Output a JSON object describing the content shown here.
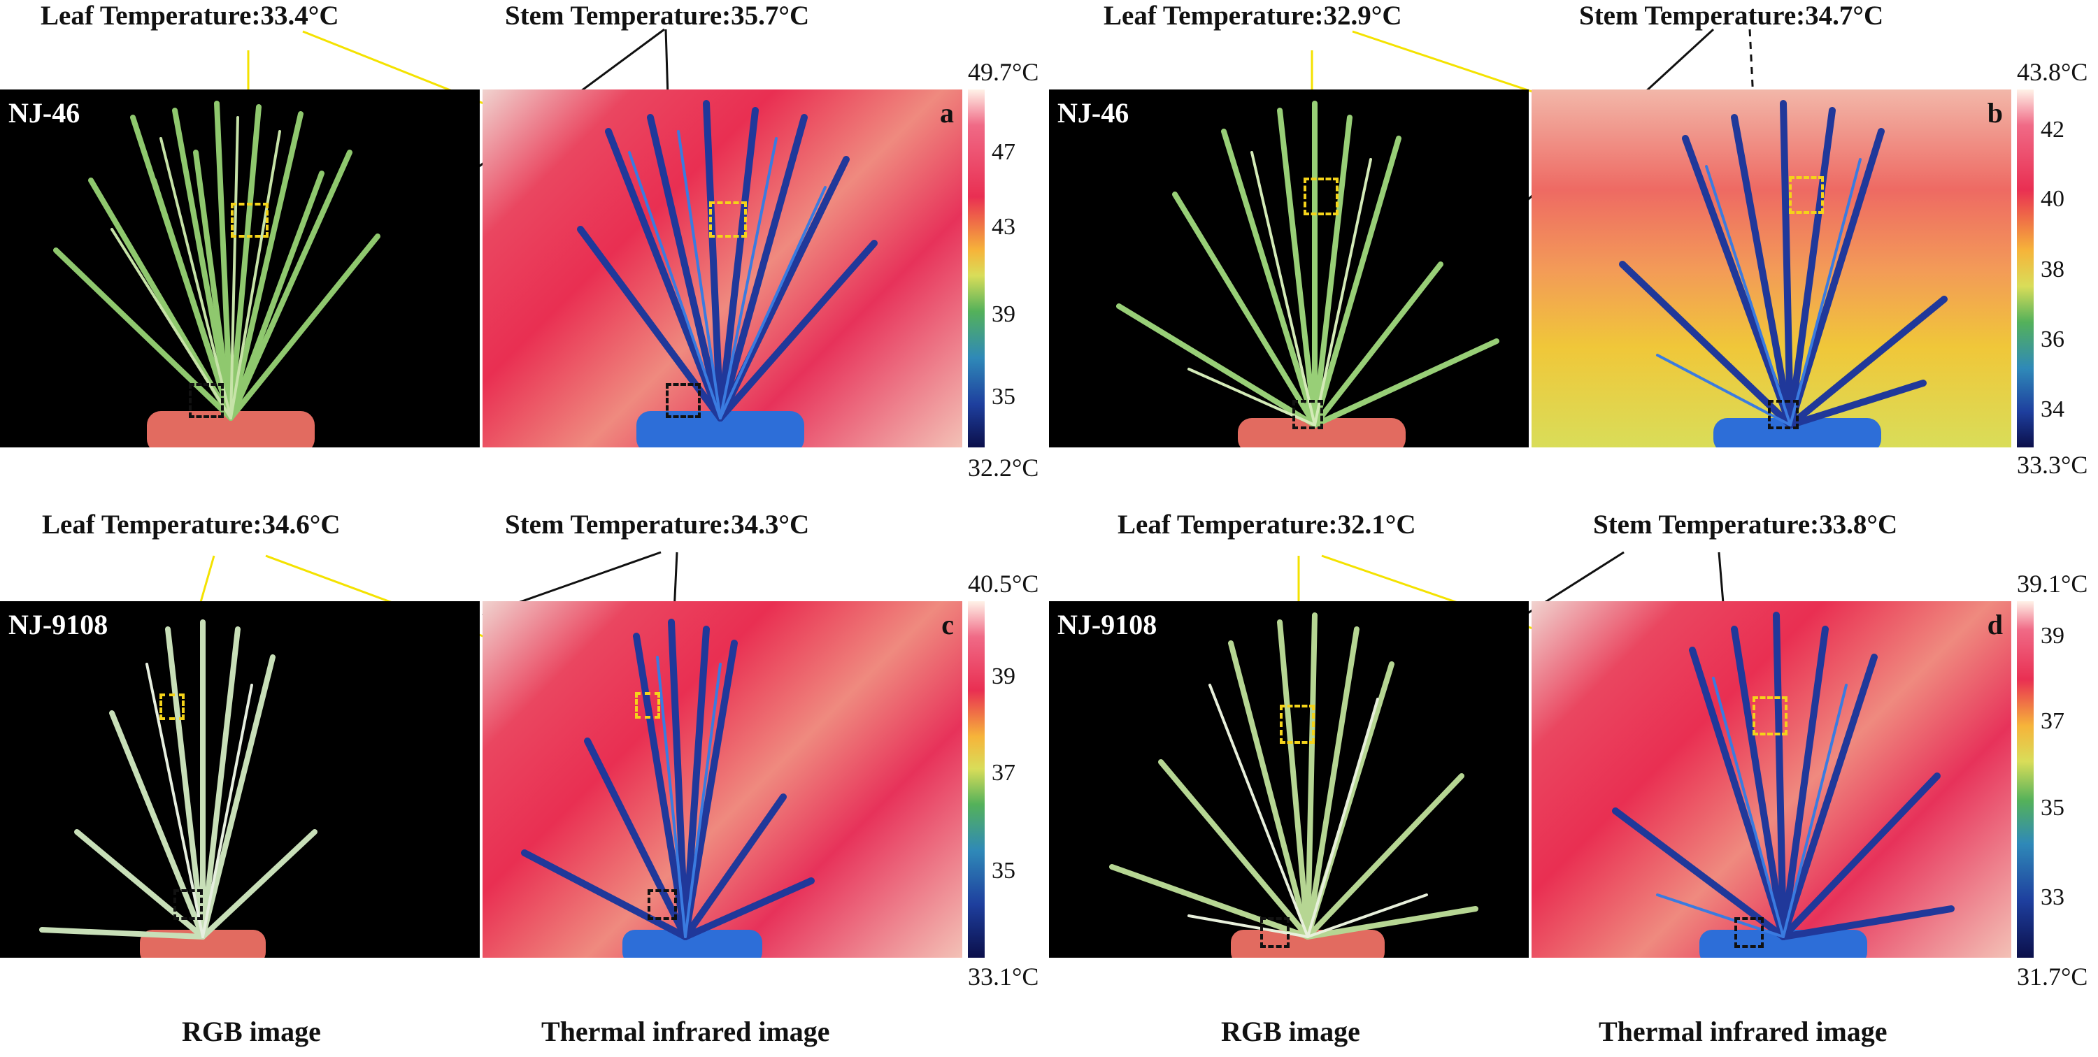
{
  "colors": {
    "leaf_line": "#f4e200",
    "stem_line": "#111111",
    "rgb_bg": "#000000",
    "thermal_hot": "#e92f52",
    "thermal_cool": "#1e3f9e",
    "scale_top": "#fff2e8",
    "scale_bottom": "#0b0f4a"
  },
  "panels": [
    {
      "id": "a",
      "sample": "NJ-46",
      "leaf_temp_label": "Leaf Temperature:33.4°C",
      "stem_temp_label": "Stem Temperature:35.7°C",
      "scale": {
        "max": "49.7°C",
        "min": "32.2°C",
        "ticks": [
          "47",
          "43",
          "39",
          "35"
        ]
      }
    },
    {
      "id": "b",
      "sample": "NJ-46",
      "leaf_temp_label": "Leaf Temperature:32.9°C",
      "stem_temp_label": "Stem Temperature:34.7°C",
      "scale": {
        "max": "43.8°C",
        "min": "33.3°C",
        "ticks": [
          "42",
          "40",
          "38",
          "36",
          "34"
        ]
      }
    },
    {
      "id": "c",
      "sample": "NJ-9108",
      "leaf_temp_label": "Leaf Temperature:34.6°C",
      "stem_temp_label": "Stem Temperature:34.3°C",
      "scale": {
        "max": "40.5°C",
        "min": "33.1°C",
        "ticks": [
          "39",
          "37",
          "35"
        ]
      }
    },
    {
      "id": "d",
      "sample": "NJ-9108",
      "leaf_temp_label": "Leaf Temperature:32.1°C",
      "stem_temp_label": "Stem Temperature:33.8°C",
      "scale": {
        "max": "39.1°C",
        "min": "31.7°C",
        "ticks": [
          "39",
          "37",
          "35",
          "33"
        ]
      }
    }
  ],
  "bottom_labels": {
    "rgb_left": "RGB image",
    "thermal_left": "Thermal infrared image",
    "rgb_right": "RGB image",
    "thermal_right": "Thermal infrared image"
  }
}
